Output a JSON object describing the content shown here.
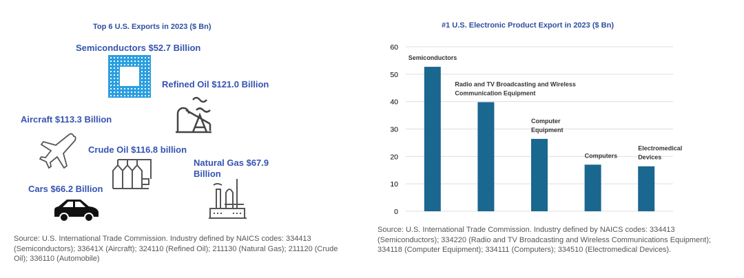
{
  "left": {
    "title": "Top 6 U.S. Exports in 2023 ($ Bn)",
    "items": [
      {
        "label": "Semiconductors $52.7 Billion",
        "icon": "chip-icon"
      },
      {
        "label": "Refined Oil $121.0 Billion",
        "icon": "oil-pump-icon"
      },
      {
        "label": "Aircraft $113.3 Billion",
        "icon": "airplane-icon"
      },
      {
        "label": "Crude Oil $116.8 billion",
        "icon": "oil-tanks-icon"
      },
      {
        "label": "Natural Gas $67.9 Billion",
        "icon": "gas-refinery-icon"
      },
      {
        "label": "Cars $66.2 Billion",
        "icon": "car-icon"
      }
    ],
    "source": "Source: U.S. International Trade Commission. Industry defined by NAICS codes: 334413 (Semiconductors); 33641X (Aircraft); 324110 (Refined Oil); 211130 (Natural Gas); 211120 (Crude Oil); 336110 (Automobile)"
  },
  "chart_data": {
    "type": "bar",
    "title": "#1 U.S. Electronic Product Export in 2023 ($ Bn)",
    "categories": [
      "Semiconductors",
      "Radio and TV Broadcasting and Wireless Communication Equipment",
      "Computer Equipment",
      "Computers",
      "Electromedical Devices"
    ],
    "category_label_lines": [
      [
        "Semiconductors"
      ],
      [
        "Radio and TV Broadcasting and Wireless",
        "Communication Equipment"
      ],
      [
        "Computer",
        "Equipment"
      ],
      [
        "Computers"
      ],
      [
        "Electromedical",
        "Devices"
      ]
    ],
    "values": [
      52.7,
      39.8,
      26.4,
      17.0,
      16.4
    ],
    "ylim": [
      0,
      60
    ],
    "yticks": [
      "0",
      "10",
      "20",
      "30",
      "40",
      "50",
      "60"
    ],
    "xlabel": "",
    "ylabel": "",
    "grid": true,
    "bar_color": "#1a6790",
    "source": "Source: U.S. International Trade Commission. Industry defined by NAICS codes: 334413 (Semiconductors); 334220 (Radio and TV Broadcasting and Wireless Communications Equipment); 334118 (Computer Equipment); 334111 (Computers); 334510 (Electromedical Devices)."
  }
}
